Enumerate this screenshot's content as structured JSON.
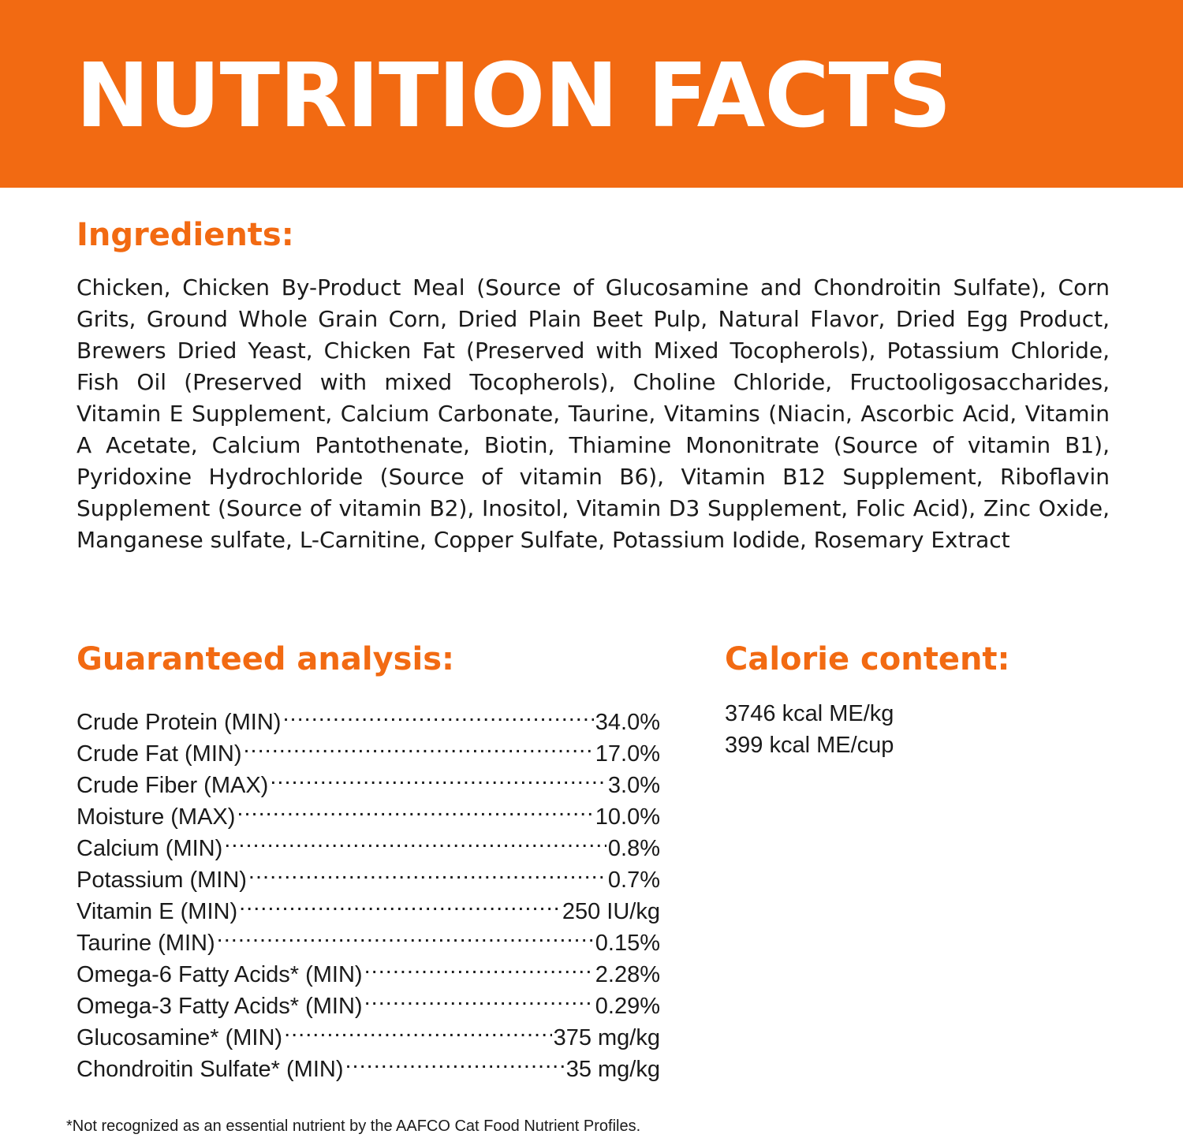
{
  "banner": {
    "title": "NUTRITION FACTS"
  },
  "ingredients": {
    "heading": "Ingredients:",
    "text": "Chicken, Chicken By-Product Meal (Source of Glucosamine and Chondroitin Sulfate), Corn Grits, Ground Whole Grain Corn, Dried Plain Beet Pulp, Natural Flavor, Dried Egg Product, Brewers Dried Yeast, Chicken Fat (Preserved with Mixed Tocopherols), Potassium Chloride, Fish Oil (Preserved with mixed Tocopherols), Choline Chloride, Fructooligosaccharides, Vitamin E Supplement, Calcium Carbonate, Taurine, Vitamins (Niacin, Ascorbic Acid, Vitamin A Acetate, Calcium Pantothenate, Biotin, Thiamine Mononitrate (Source of vitamin B1), Pyridoxine Hydrochloride (Source of vitamin B6), Vitamin B12 Supplement, Riboflavin Supplement (Source of vitamin B2), Inositol, Vitamin D3 Supplement, Folic Acid), Zinc Oxide, Manganese sulfate, L-Carnitine, Copper Sulfate, Potassium Iodide, Rosemary Extract"
  },
  "analysis": {
    "heading": "Guaranteed analysis:",
    "rows": [
      {
        "label": "Crude Protein (MIN)",
        "value": "34.0%"
      },
      {
        "label": "Crude Fat (MIN)",
        "value": "17.0%"
      },
      {
        "label": "Crude Fiber (MAX)",
        "value": "3.0%"
      },
      {
        "label": "Moisture (MAX)",
        "value": "10.0%"
      },
      {
        "label": "Calcium (MIN)",
        "value": "0.8%"
      },
      {
        "label": "Potassium (MIN)",
        "value": "0.7%"
      },
      {
        "label": "Vitamin E (MIN)",
        "value": "250 IU/kg"
      },
      {
        "label": "Taurine (MIN)",
        "value": "0.15%"
      },
      {
        "label": "Omega-6 Fatty Acids* (MIN)",
        "value": "2.28%"
      },
      {
        "label": "Omega-3 Fatty Acids* (MIN)",
        "value": "0.29%"
      },
      {
        "label": "Glucosamine* (MIN)",
        "value": "375 mg/kg"
      },
      {
        "label": "Chondroitin Sulfate* (MIN)",
        "value": "35 mg/kg"
      }
    ]
  },
  "calories": {
    "heading": "Calorie content:",
    "lines": [
      "3746 kcal ME/kg",
      "399 kcal ME/cup"
    ]
  },
  "footnote": "*Not recognized as an essential nutrient by the AAFCO Cat Food Nutrient Profiles.",
  "colors": {
    "accent": "#f26a12",
    "text": "#1a1a1a",
    "background": "#ffffff"
  }
}
